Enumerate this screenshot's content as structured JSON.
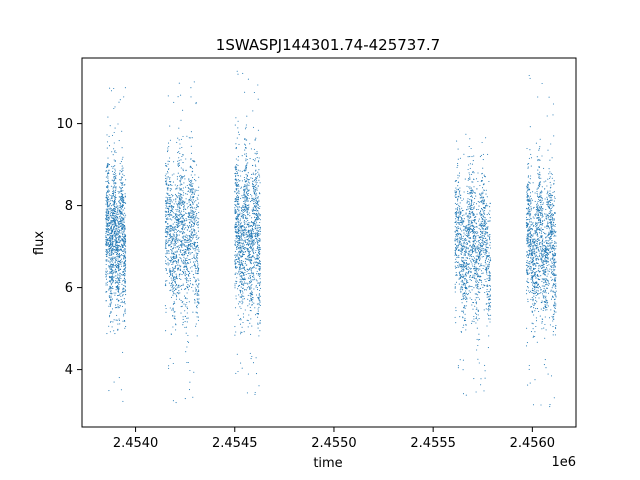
{
  "chart_data": {
    "type": "scatter",
    "title": "1SWASPJ144301.74-425737.7",
    "xlabel": "time",
    "ylabel": "flux",
    "x_offset_label": "1e6",
    "xlim": [
      2.45373,
      2.45622
    ],
    "ylim": [
      2.6,
      11.6
    ],
    "x_ticks": [
      2.454,
      2.4545,
      2.455,
      2.4555,
      2.456
    ],
    "x_tick_labels": [
      "2.4540",
      "2.4545",
      "2.4550",
      "2.4555",
      "2.4560"
    ],
    "y_ticks": [
      4,
      6,
      8,
      10
    ],
    "y_tick_labels": [
      "4",
      "6",
      "8",
      "10"
    ],
    "grid": false,
    "marker_color": "#1f77b4",
    "series": [
      {
        "values_note_free": true,
        "clusters": [
          {
            "x": [
              2.45385,
              2.45395
            ],
            "y_center": 7.2,
            "y_spread": 0.8,
            "y_min": 3.2,
            "y_max": 11.2
          },
          {
            "x": [
              2.45415,
              2.45432
            ],
            "y_center": 7.2,
            "y_spread": 0.9,
            "y_min": 3.1,
            "y_max": 11.2
          },
          {
            "x": [
              2.4545,
              2.45463
            ],
            "y_center": 7.3,
            "y_spread": 0.9,
            "y_min": 3.3,
            "y_max": 11.3
          },
          {
            "x": [
              2.45561,
              2.45579
            ],
            "y_center": 7.0,
            "y_spread": 0.8,
            "y_min": 3.3,
            "y_max": 9.8
          },
          {
            "x": [
              2.45597,
              2.45612
            ],
            "y_center": 7.0,
            "y_spread": 0.8,
            "y_min": 3.0,
            "y_max": 11.2
          }
        ]
      }
    ]
  }
}
